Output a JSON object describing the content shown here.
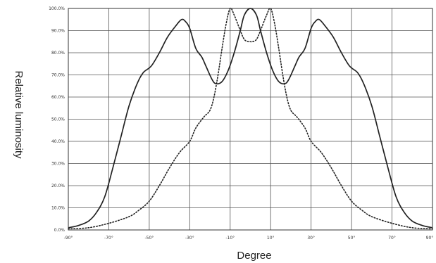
{
  "chart_data": {
    "type": "line",
    "title": "",
    "xlabel": "Degree",
    "ylabel": "Relative luminosity",
    "xlim": [
      -90,
      90
    ],
    "ylim": [
      0,
      100
    ],
    "x_ticks": [
      "-90°",
      "-70°",
      "-50°",
      "-30°",
      "-10°",
      "10°",
      "30°",
      "50°",
      "70°",
      "90°"
    ],
    "y_ticks": [
      "0.0%",
      "10.0%",
      "20.0%",
      "30.0%",
      "40.0%",
      "50.0%",
      "60.0%",
      "70.0%",
      "80.0%",
      "90.0%",
      "100.0%"
    ],
    "grid": true,
    "legend": "none",
    "series": [
      {
        "style": "solid",
        "color": "#222222",
        "points": [
          [
            -90,
            1
          ],
          [
            -85,
            2
          ],
          [
            -80,
            4
          ],
          [
            -76,
            8
          ],
          [
            -72,
            15
          ],
          [
            -68,
            28
          ],
          [
            -64,
            42
          ],
          [
            -60,
            56
          ],
          [
            -56,
            66
          ],
          [
            -53,
            71
          ],
          [
            -49,
            74
          ],
          [
            -45,
            80
          ],
          [
            -41,
            87
          ],
          [
            -37,
            92
          ],
          [
            -34,
            95
          ],
          [
            -32,
            94
          ],
          [
            -30,
            91
          ],
          [
            -27,
            82
          ],
          [
            -24,
            78
          ],
          [
            -22,
            74
          ],
          [
            -19,
            68
          ],
          [
            -17,
            66
          ],
          [
            -14,
            67
          ],
          [
            -11,
            72
          ],
          [
            -8,
            80
          ],
          [
            -5,
            90
          ],
          [
            -3,
            97
          ],
          [
            0,
            100
          ],
          [
            3,
            97
          ],
          [
            5,
            90
          ],
          [
            8,
            80
          ],
          [
            11,
            72
          ],
          [
            14,
            67
          ],
          [
            17,
            66
          ],
          [
            19,
            68
          ],
          [
            22,
            74
          ],
          [
            24,
            78
          ],
          [
            27,
            82
          ],
          [
            30,
            91
          ],
          [
            32,
            94
          ],
          [
            34,
            95
          ],
          [
            37,
            92
          ],
          [
            41,
            87
          ],
          [
            45,
            80
          ],
          [
            49,
            74
          ],
          [
            53,
            71
          ],
          [
            56,
            66
          ],
          [
            60,
            56
          ],
          [
            64,
            42
          ],
          [
            68,
            28
          ],
          [
            72,
            15
          ],
          [
            76,
            8
          ],
          [
            80,
            4
          ],
          [
            85,
            2
          ],
          [
            90,
            1
          ]
        ]
      },
      {
        "style": "dotted",
        "color": "#222222",
        "points": [
          [
            -90,
            0.5
          ],
          [
            -80,
            1
          ],
          [
            -70,
            3
          ],
          [
            -60,
            6
          ],
          [
            -55,
            9
          ],
          [
            -50,
            13
          ],
          [
            -45,
            20
          ],
          [
            -40,
            28
          ],
          [
            -35,
            35
          ],
          [
            -30,
            40
          ],
          [
            -27,
            46
          ],
          [
            -23,
            51
          ],
          [
            -20,
            54
          ],
          [
            -18,
            60
          ],
          [
            -16,
            70
          ],
          [
            -14,
            82
          ],
          [
            -12,
            93
          ],
          [
            -10,
            100
          ],
          [
            -8,
            97
          ],
          [
            -5,
            90
          ],
          [
            -3,
            86
          ],
          [
            -1,
            85
          ],
          [
            0,
            85
          ],
          [
            1,
            85
          ],
          [
            3,
            86
          ],
          [
            5,
            90
          ],
          [
            8,
            97
          ],
          [
            10,
            100
          ],
          [
            12,
            93
          ],
          [
            14,
            82
          ],
          [
            16,
            70
          ],
          [
            18,
            60
          ],
          [
            20,
            54
          ],
          [
            23,
            51
          ],
          [
            27,
            46
          ],
          [
            30,
            40
          ],
          [
            35,
            35
          ],
          [
            40,
            28
          ],
          [
            45,
            20
          ],
          [
            50,
            13
          ],
          [
            55,
            9
          ],
          [
            60,
            6
          ],
          [
            70,
            3
          ],
          [
            80,
            1
          ],
          [
            90,
            0.5
          ]
        ]
      }
    ]
  }
}
